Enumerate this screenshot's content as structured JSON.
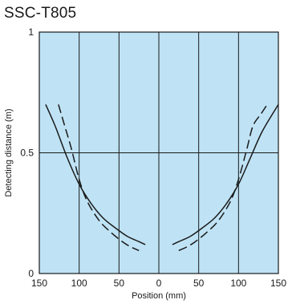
{
  "chart_data": {
    "type": "line",
    "title": "SSC-T805",
    "xlabel": "Position (mm)",
    "ylabel": "Detecting distance (m)",
    "xlim": [
      -150,
      150
    ],
    "ylim": [
      0,
      1
    ],
    "x_tick_values": [
      -150,
      -100,
      -50,
      0,
      50,
      100,
      150
    ],
    "x_tick_labels": [
      "150",
      "100",
      "50",
      "0",
      "50",
      "100",
      "150"
    ],
    "y_tick_values": [
      0,
      0.5,
      1
    ],
    "y_tick_labels": [
      "0",
      "0.5",
      "1"
    ],
    "grid": true,
    "legend": "none",
    "colors": {
      "plot_background": "#bfe3f5",
      "line": "#1a1a1a",
      "grid": "#1a1a1a"
    },
    "series": [
      {
        "style": "solid",
        "x": [
          -142,
          -130,
          -115,
          -100,
          -85,
          -70,
          -55,
          -40,
          -27,
          -17
        ],
        "y": [
          0.7,
          0.61,
          0.48,
          0.37,
          0.29,
          0.23,
          0.19,
          0.155,
          0.135,
          0.12
        ]
      },
      {
        "style": "dashed",
        "x": [
          -126,
          -118,
          -110,
          -100,
          -90,
          -75,
          -60,
          -45,
          -35,
          -25
        ],
        "y": [
          0.7,
          0.61,
          0.52,
          0.39,
          0.3,
          0.22,
          0.17,
          0.13,
          0.11,
          0.095
        ]
      },
      {
        "style": "solid",
        "x": [
          17,
          27,
          40,
          55,
          70,
          85,
          100,
          115,
          130,
          150
        ],
        "y": [
          0.12,
          0.135,
          0.155,
          0.19,
          0.23,
          0.29,
          0.37,
          0.48,
          0.59,
          0.7
        ]
      },
      {
        "style": "dashed",
        "x": [
          25,
          35,
          45,
          60,
          75,
          90,
          100,
          110,
          118,
          128,
          136
        ],
        "y": [
          0.095,
          0.11,
          0.13,
          0.17,
          0.22,
          0.3,
          0.39,
          0.51,
          0.61,
          0.66,
          0.7
        ]
      }
    ]
  }
}
